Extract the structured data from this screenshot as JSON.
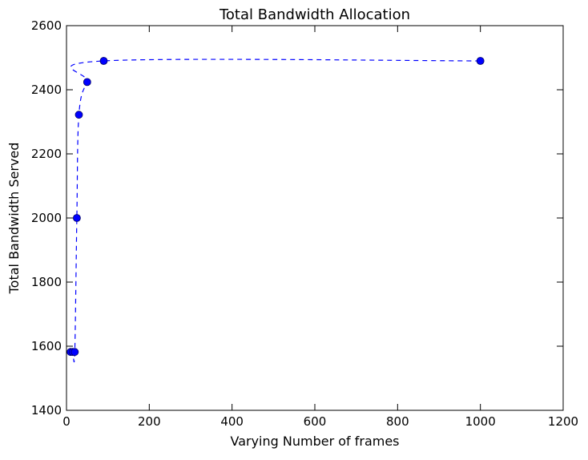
{
  "chart_data": {
    "type": "line",
    "title": "Total Bandwidth Allocation",
    "xlabel": "Varying Number of frames",
    "ylabel": "Total Bandwidth Served",
    "xlim": [
      0,
      1200
    ],
    "ylim": [
      1400,
      2600
    ],
    "xticks": [
      0,
      200,
      400,
      600,
      800,
      1000,
      1200
    ],
    "yticks": [
      1400,
      1600,
      1800,
      2000,
      2200,
      2400,
      2600
    ],
    "grid": false,
    "series": [
      {
        "x": [
          10,
          15,
          20,
          25,
          30,
          50,
          90,
          1000
        ],
        "y": [
          1582,
          1582,
          1582,
          2000,
          2322,
          2424,
          2490,
          2490
        ],
        "color": "#0000ff",
        "line_style": "dashed",
        "marker": "circle"
      }
    ]
  }
}
